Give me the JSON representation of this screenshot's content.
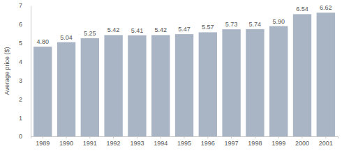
{
  "chart_data": {
    "type": "bar",
    "y_label": "Average price ($)",
    "categories": [
      "1989",
      "1990",
      "1991",
      "1992",
      "1993",
      "1994",
      "1995",
      "1996",
      "1997",
      "1998",
      "1999",
      "2000",
      "2001"
    ],
    "values": [
      4.8,
      5.04,
      5.25,
      5.42,
      5.41,
      5.42,
      5.47,
      5.57,
      5.73,
      5.74,
      5.9,
      6.54,
      6.62
    ],
    "value_labels": [
      "4.80",
      "5.04",
      "5.25",
      "5.42",
      "5.41",
      "5.42",
      "5.47",
      "5.57",
      "5.73",
      "5.74",
      "5.90",
      "6.54",
      "6.62"
    ],
    "data_labels": true,
    "color": "#a9b5c5",
    "ylim": [
      0,
      7
    ],
    "yticks": [
      0,
      1,
      2,
      3,
      4,
      5,
      6,
      7
    ],
    "grid": false
  }
}
